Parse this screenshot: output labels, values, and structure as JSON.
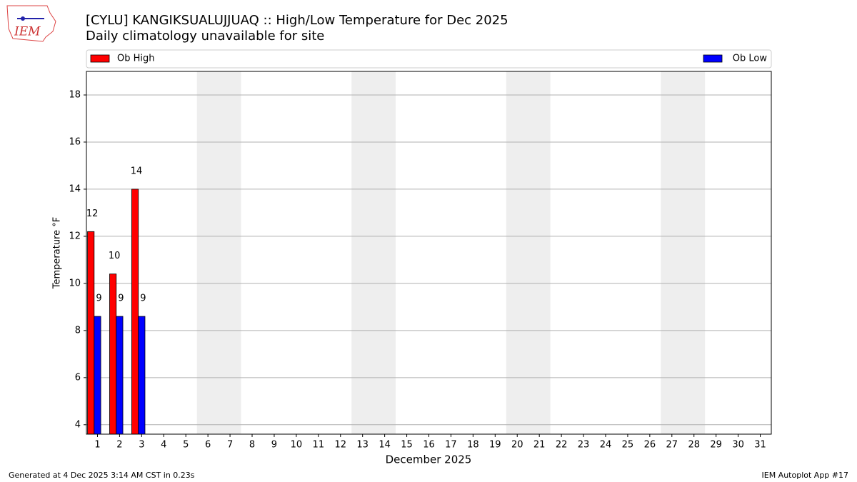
{
  "logo_text": "IEM",
  "footer_left": "Generated at 4 Dec 2025 3:14 AM CST in 0.23s",
  "footer_right": "IEM Autoplot App #17",
  "chart_data": {
    "type": "bar",
    "title": "[CYLU] KANGIKSUALUJJUAQ :: High/Low Temperature for Dec 2025",
    "subtitle": "Daily climatology unavailable for site",
    "xlabel": "December 2025",
    "ylabel": "Temperature °F",
    "x": [
      1,
      2,
      3,
      4,
      5,
      6,
      7,
      8,
      9,
      10,
      11,
      12,
      13,
      14,
      15,
      16,
      17,
      18,
      19,
      20,
      21,
      22,
      23,
      24,
      25,
      26,
      27,
      28,
      29,
      30,
      31
    ],
    "xlim": [
      0.5,
      31.5
    ],
    "ylim": [
      3.6,
      19.0
    ],
    "yticks": [
      4,
      6,
      8,
      10,
      12,
      14,
      16,
      18
    ],
    "grid": true,
    "shaded_ranges": [
      [
        5.5,
        7.5
      ],
      [
        12.5,
        14.5
      ],
      [
        19.5,
        21.5
      ],
      [
        26.5,
        28.5
      ]
    ],
    "series": [
      {
        "name": "Ob High",
        "color": "#ff0000",
        "values": [
          12.2,
          10.4,
          14.0,
          null,
          null,
          null,
          null,
          null,
          null,
          null,
          null,
          null,
          null,
          null,
          null,
          null,
          null,
          null,
          null,
          null,
          null,
          null,
          null,
          null,
          null,
          null,
          null,
          null,
          null,
          null,
          null
        ],
        "value_labels": [
          "12",
          "10",
          "14",
          null,
          null,
          null,
          null,
          null,
          null,
          null,
          null,
          null,
          null,
          null,
          null,
          null,
          null,
          null,
          null,
          null,
          null,
          null,
          null,
          null,
          null,
          null,
          null,
          null,
          null,
          null,
          null
        ]
      },
      {
        "name": "Ob Low",
        "color": "#0000ff",
        "values": [
          8.6,
          8.6,
          8.6,
          null,
          null,
          null,
          null,
          null,
          null,
          null,
          null,
          null,
          null,
          null,
          null,
          null,
          null,
          null,
          null,
          null,
          null,
          null,
          null,
          null,
          null,
          null,
          null,
          null,
          null,
          null,
          null
        ],
        "value_labels": [
          "9",
          "9",
          "9",
          null,
          null,
          null,
          null,
          null,
          null,
          null,
          null,
          null,
          null,
          null,
          null,
          null,
          null,
          null,
          null,
          null,
          null,
          null,
          null,
          null,
          null,
          null,
          null,
          null,
          null,
          null,
          null
        ]
      }
    ]
  }
}
